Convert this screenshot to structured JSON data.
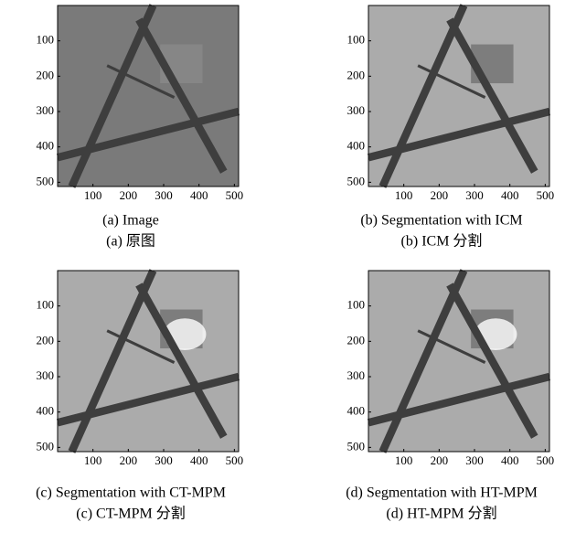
{
  "panels": [
    {
      "caption_en": "(a) Image",
      "caption_zh": "(a)  原图",
      "yticks": [
        100,
        200,
        300,
        400,
        500
      ],
      "xticks": [
        100,
        200,
        300,
        400,
        500
      ]
    },
    {
      "caption_en": "(b) Segmentation with ICM",
      "caption_zh": "(b) ICM 分割",
      "yticks": [
        100,
        200,
        300,
        400,
        500
      ],
      "xticks": [
        100,
        200,
        300,
        400,
        500
      ]
    },
    {
      "caption_en": "(c) Segmentation with CT-MPM",
      "caption_zh": "(c) CT-MPM 分割",
      "yticks": [
        100,
        200,
        300,
        400,
        500
      ],
      "xticks": [
        100,
        200,
        300,
        400,
        500
      ]
    },
    {
      "caption_en": "(d) Segmentation with HT-MPM",
      "caption_zh": "(d) HT-MPM 分割",
      "yticks": [
        100,
        200,
        300,
        400,
        500
      ],
      "xticks": [
        100,
        200,
        300,
        400,
        500
      ]
    }
  ]
}
